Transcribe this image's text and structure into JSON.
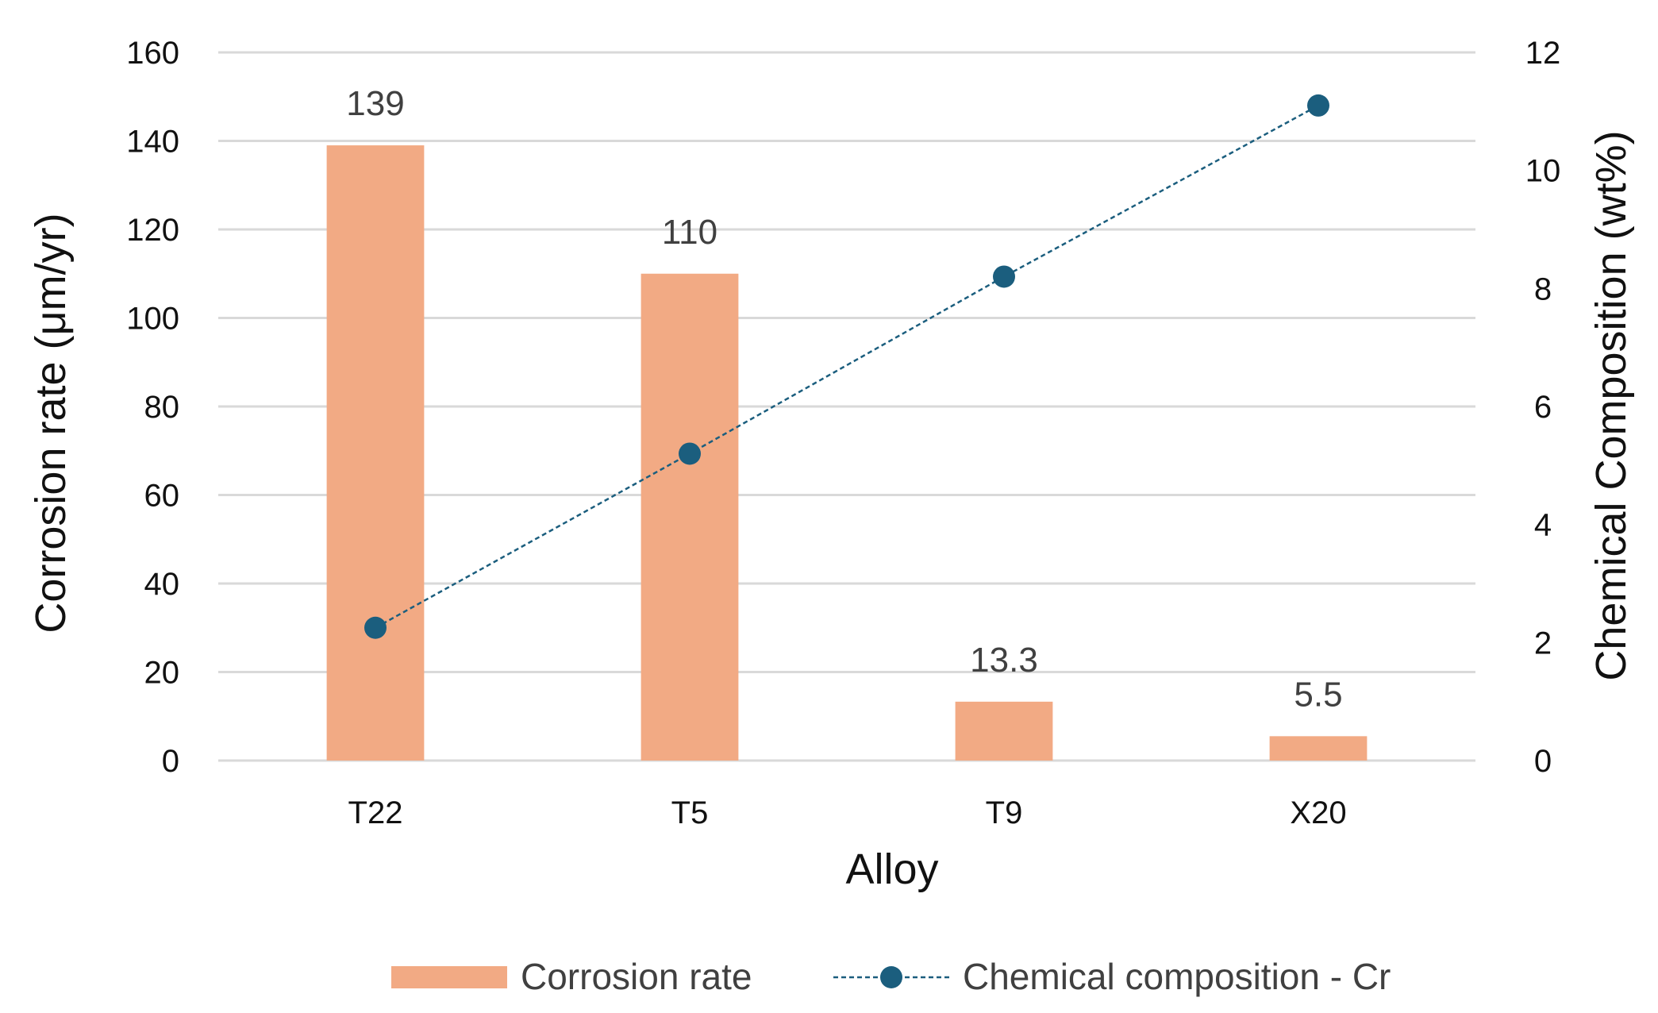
{
  "chart_data": {
    "type": "bar",
    "categories": [
      "T22",
      "T5",
      "T9",
      "X20"
    ],
    "series": [
      {
        "name": "Corrosion rate",
        "type": "bar",
        "axis": "left",
        "values": [
          139,
          110,
          13.3,
          5.5
        ],
        "data_labels": [
          "139",
          "110",
          "13.3",
          "5.5"
        ],
        "color": "#F2AA84"
      },
      {
        "name": "Chemical composition - Cr",
        "type": "line",
        "axis": "right",
        "values": [
          2.25,
          5.2,
          8.2,
          11.1
        ],
        "color": "#1B5E7E",
        "line_style": "dashed",
        "marker": "circle"
      }
    ],
    "xlabel": "Alloy",
    "ylabel": "Corrosion rate (μm/yr)",
    "ylabel_right": "Chemical Composition (wt%)",
    "ylim": [
      0,
      160
    ],
    "yticks": [
      "0",
      "20",
      "40",
      "60",
      "80",
      "100",
      "120",
      "140",
      "160"
    ],
    "ylim_right": [
      0,
      12
    ],
    "yticks_right": [
      "0",
      "2",
      "4",
      "6",
      "8",
      "10",
      "12"
    ],
    "grid": true,
    "legend_position": "bottom"
  }
}
